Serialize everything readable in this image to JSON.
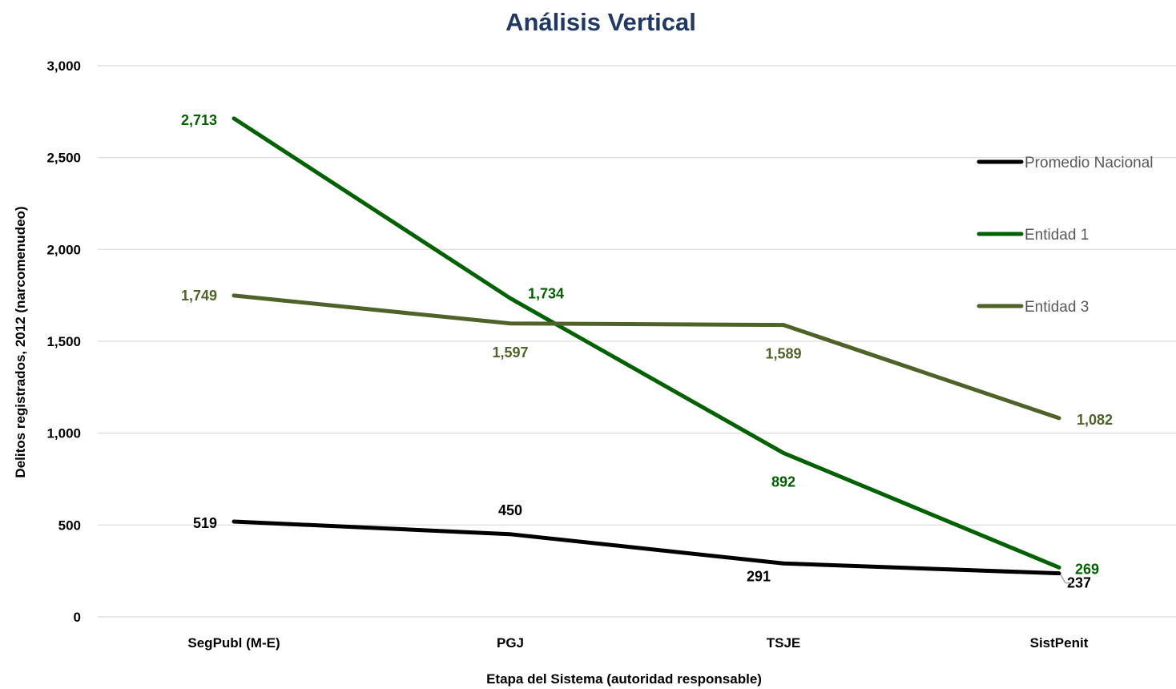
{
  "chart_data": {
    "type": "line",
    "title": "Análisis Vertical",
    "xlabel": "Etapa del Sistema (autoridad responsable)",
    "ylabel": "Delitos registrados, 2012 (narcomenudeo)",
    "categories": [
      "SegPubl (M-E)",
      "PGJ",
      "TSJE",
      "SistPenit"
    ],
    "ylim": [
      0,
      3000
    ],
    "yticks": [
      0,
      500,
      1000,
      1500,
      2000,
      2500,
      3000
    ],
    "ytick_labels": [
      "0",
      "500",
      "1,000",
      "1,500",
      "2,000",
      "2,500",
      "3,000"
    ],
    "grid": true,
    "legend_position": "right",
    "series": [
      {
        "name": "Promedio Nacional",
        "values": [
          519,
          450,
          291,
          237
        ],
        "labels": [
          "519",
          "450",
          "291",
          "237"
        ],
        "color": "#000000"
      },
      {
        "name": "Entidad 1",
        "values": [
          2713,
          1734,
          892,
          269
        ],
        "labels": [
          "2,713",
          "1,734",
          "892",
          "269"
        ],
        "color": "#006100"
      },
      {
        "name": "Entidad 3",
        "values": [
          1749,
          1597,
          1589,
          1082
        ],
        "labels": [
          "1,749",
          "1,597",
          "1,589",
          "1,082"
        ],
        "color": "#4F6228"
      }
    ],
    "title_color": "#1F3864",
    "grid_color": "#D9D9D9"
  }
}
